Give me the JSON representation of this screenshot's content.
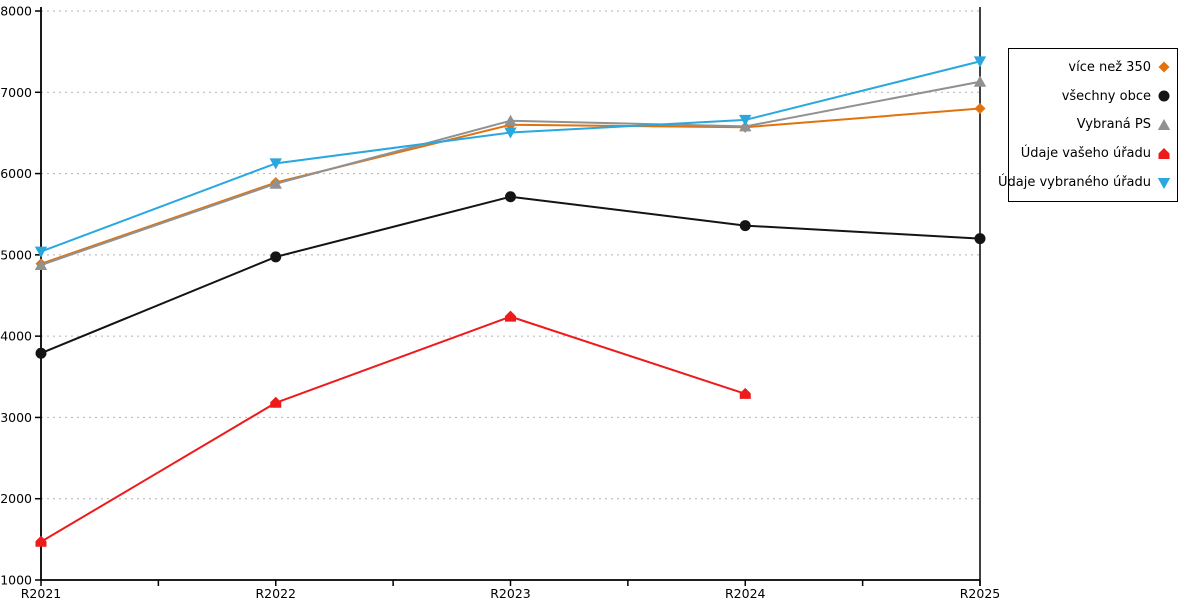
{
  "chart_data": {
    "type": "line",
    "title": "",
    "xlabel": "",
    "ylabel": "",
    "categories": [
      "R2021",
      "R2022",
      "R2023",
      "R2024",
      "R2025"
    ],
    "y_ticks": [
      1000,
      2000,
      3000,
      4000,
      5000,
      6000,
      7000,
      8000
    ],
    "ylim": [
      1000,
      8000
    ],
    "grid": "horizontal-dashed",
    "legend_position": "right",
    "series": [
      {
        "name": "více než 350",
        "color": "#E2720E",
        "marker": "diamond",
        "values": [
          4890,
          5890,
          6600,
          6570,
          6800
        ]
      },
      {
        "name": "všechny obce",
        "color": "#141414",
        "marker": "circle",
        "values": [
          3790,
          4975,
          5715,
          5360,
          5200
        ]
      },
      {
        "name": "Vybraná PS",
        "color": "#919191",
        "marker": "triangle-up",
        "values": [
          4875,
          5875,
          6650,
          6580,
          7130
        ]
      },
      {
        "name": "Údaje vašeho úřadu",
        "color": "#EE1B1B",
        "marker": "pentagon",
        "values": [
          1470,
          3180,
          4240,
          3290,
          null
        ]
      },
      {
        "name": "Údaje vybraného úřadu",
        "color": "#29A8E0",
        "marker": "triangle-down",
        "values": [
          5040,
          6125,
          6505,
          6660,
          7380
        ]
      }
    ],
    "colors": {
      "axis": "#000000",
      "gridline": "#B2B2B2",
      "background": "#FFFFFF"
    }
  }
}
